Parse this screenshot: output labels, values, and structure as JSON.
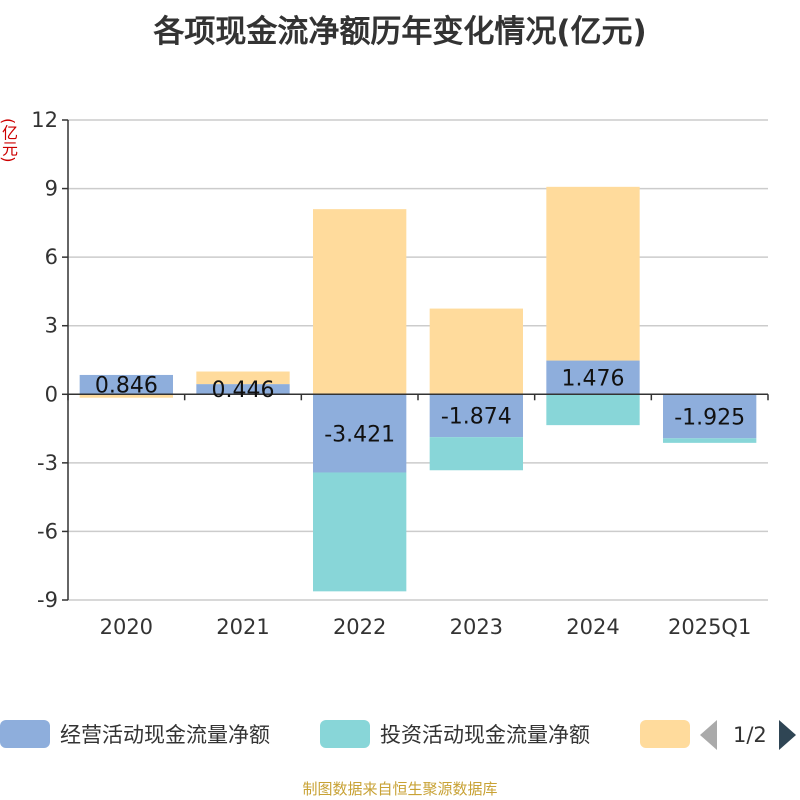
{
  "title": "各项现金流净额历年变化情况(亿元)",
  "unit_label": "(亿元)",
  "source": "制图数据来自恒生聚源数据库",
  "legend": {
    "pager_text": "1/2"
  },
  "chart_data": {
    "type": "bar",
    "stacked": true,
    "categories": [
      "2020",
      "2021",
      "2022",
      "2023",
      "2024",
      "2025Q1"
    ],
    "ylim": [
      -9,
      12
    ],
    "yticks": [
      12,
      9,
      6,
      3,
      0,
      -3,
      -6,
      -9
    ],
    "grid": true,
    "legend_position": "bottom",
    "series": [
      {
        "name": "经营活动现金流量净额",
        "color": "#8eaedc",
        "values": [
          0.846,
          0.446,
          -3.421,
          -1.874,
          1.476,
          -1.925
        ],
        "labels": [
          "0.846",
          "0.446",
          "-3.421",
          "-1.874",
          "1.476",
          "-1.925"
        ]
      },
      {
        "name": "投资活动现金流量净额",
        "color": "#88d6d8",
        "values": [
          0.0,
          0.0,
          -5.2,
          -1.45,
          -1.35,
          -0.2
        ]
      },
      {
        "name": "",
        "color": "#ffdb9c",
        "values": [
          -0.15,
          0.55,
          8.1,
          3.75,
          7.6,
          0.0
        ]
      }
    ]
  }
}
